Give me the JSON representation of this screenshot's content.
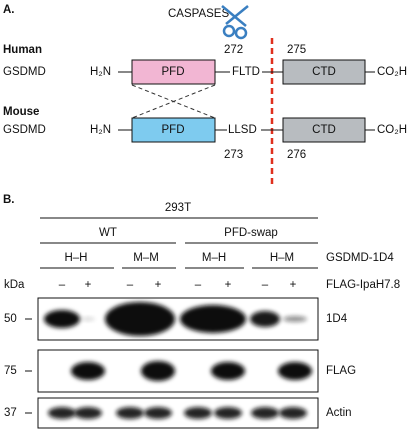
{
  "panel_a": {
    "label": "A.",
    "cleavage_label": "CASPASES",
    "human": {
      "species": "Human",
      "protein": "GSDMD",
      "n_terminus": "H₂N",
      "pfd": "PFD",
      "linker": "FLTD",
      "ctd": "CTD",
      "c_terminus": "CO₂H",
      "pfd_end": 272,
      "ctd_start": 275
    },
    "mouse": {
      "species": "Mouse",
      "protein": "GSDMD",
      "n_terminus": "H₂N",
      "pfd": "PFD",
      "linker": "LLSD",
      "ctd": "CTD",
      "c_terminus": "CO₂H",
      "pfd_end": 273,
      "ctd_start": 276
    }
  },
  "panel_b": {
    "label": "B.",
    "cell_line": "293T",
    "groups": [
      {
        "name": "WT",
        "pairs": [
          "H–H",
          "M–M"
        ]
      },
      {
        "name": "PFD-swap",
        "pairs": [
          "M–H",
          "H–M"
        ]
      }
    ],
    "pair_row_label": "GSDMD-1D4",
    "kda_label": "kDa",
    "lanes": [
      "–",
      "+",
      "–",
      "+",
      "–",
      "+",
      "–",
      "+"
    ],
    "treatment_label": "FLAG-IpaH7.8",
    "blots": [
      {
        "marker": 50,
        "antibody": "1D4"
      },
      {
        "marker": 75,
        "antibody": "FLAG"
      },
      {
        "marker": 37,
        "antibody": "Actin"
      }
    ]
  }
}
